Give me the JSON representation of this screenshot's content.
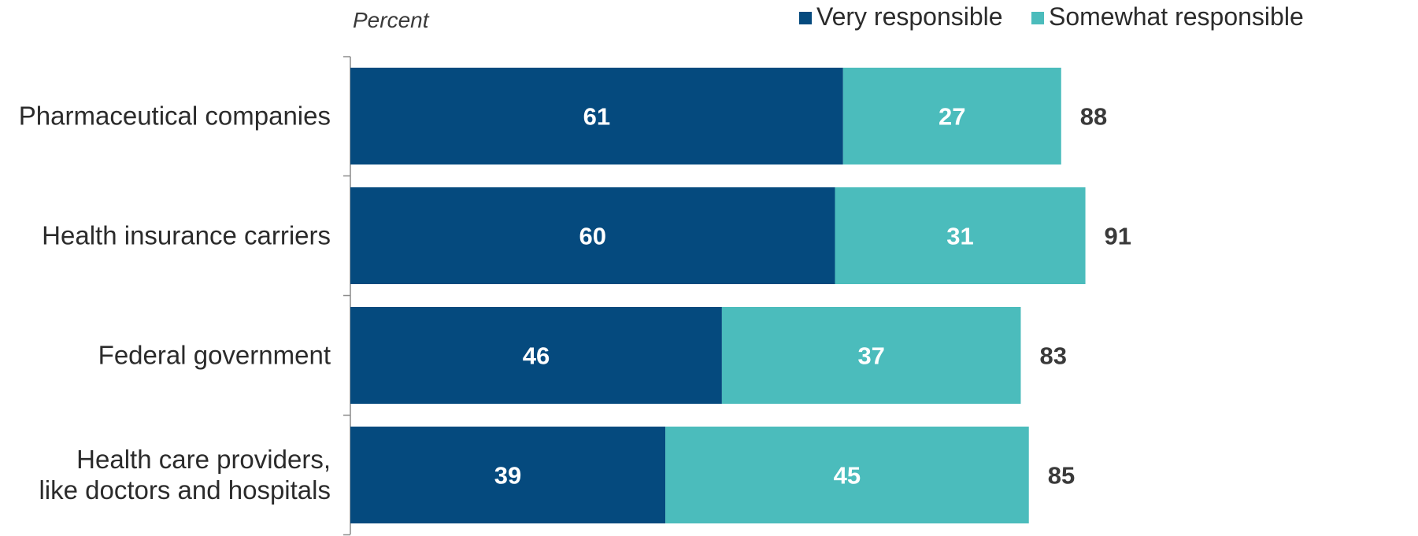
{
  "chart_data": {
    "type": "bar",
    "orientation": "horizontal",
    "stacked": true,
    "unit_label": "Percent",
    "categories": [
      [
        "Pharmaceutical companies"
      ],
      [
        "Health insurance carriers"
      ],
      [
        "Federal government"
      ],
      [
        "Health care providers,",
        "like doctors and hospitals"
      ]
    ],
    "series": [
      {
        "name": "Very responsible",
        "values": [
          61,
          60,
          46,
          39
        ],
        "color": "#054a7e"
      },
      {
        "name": "Somewhat responsible",
        "values": [
          27,
          31,
          37,
          45
        ],
        "color": "#4bbcbc"
      }
    ],
    "totals": [
      88,
      91,
      83,
      85
    ],
    "xlim": [
      0,
      100
    ],
    "grid": false,
    "legend_position": "top-right",
    "value_labels": true
  }
}
